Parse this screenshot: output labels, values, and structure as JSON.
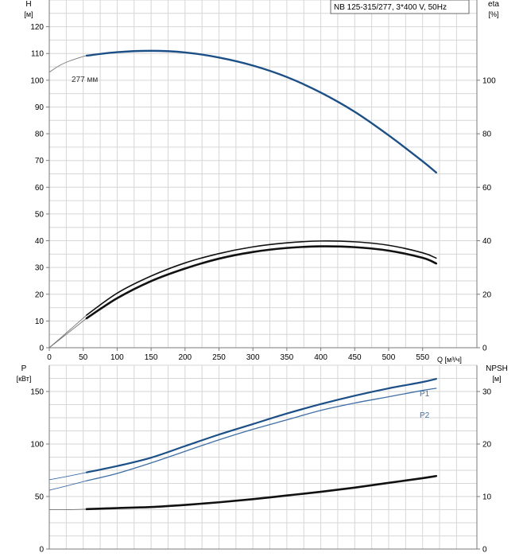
{
  "colors": {
    "blue": "#1b4f86",
    "blue_light": "#3f6fa5",
    "grid": "#d6d6d6",
    "axis": "#7a7a7a",
    "curve_dark": "#111111",
    "curve_thin": "#777777"
  },
  "chart_data": [
    {
      "type": "line",
      "title": "NB 125-315/277, 3*400 V, 50Hz",
      "ylabel_left": "H",
      "ylabel_left_unit": "[м]",
      "ylabel_right": "eta",
      "ylabel_right_unit": "[%]",
      "xlabel": "Q [м³/ч]",
      "xlim": [
        0,
        630
      ],
      "ylim_left": [
        0,
        130
      ],
      "ylim_right": [
        0,
        130
      ],
      "x_ticks": [
        "0",
        "50",
        "100",
        "150",
        "200",
        "250",
        "300",
        "350",
        "400",
        "450",
        "500",
        "550"
      ],
      "y_ticks_left": [
        "0",
        "10",
        "20",
        "30",
        "40",
        "50",
        "60",
        "70",
        "80",
        "90",
        "100",
        "110",
        "120"
      ],
      "y_ticks_right": [
        "0",
        "20",
        "40",
        "60",
        "80",
        "100"
      ],
      "curve_label": "277 мм",
      "series": [
        {
          "role": "head-extension",
          "x": [
            0,
            15,
            30,
            45,
            55
          ],
          "y": [
            103,
            105.5,
            107.2,
            108.5,
            109.2
          ]
        },
        {
          "role": "head",
          "x": [
            55,
            100,
            150,
            200,
            250,
            300,
            350,
            400,
            450,
            500,
            550,
            570
          ],
          "y": [
            109.2,
            110.5,
            111,
            110.4,
            108.5,
            105.5,
            101.2,
            95.4,
            88.2,
            79.4,
            69.7,
            65.5
          ]
        },
        {
          "role": "eta-outer-extension",
          "x": [
            0,
            25,
            55
          ],
          "y": [
            0,
            5.5,
            12.2
          ]
        },
        {
          "role": "eta-outer",
          "x": [
            55,
            100,
            150,
            200,
            250,
            300,
            350,
            400,
            450,
            500,
            550,
            570
          ],
          "y": [
            12.2,
            20.4,
            26.8,
            31.7,
            35.2,
            37.7,
            39.2,
            39.9,
            39.6,
            38.3,
            35.5,
            33.5
          ]
        },
        {
          "role": "eta-extension",
          "x": [
            0,
            25,
            55
          ],
          "y": [
            0,
            5.0,
            11.0
          ]
        },
        {
          "role": "eta",
          "x": [
            55,
            100,
            150,
            200,
            250,
            300,
            350,
            400,
            450,
            500,
            550,
            570
          ],
          "y": [
            11.0,
            18.5,
            24.9,
            29.6,
            33.3,
            35.8,
            37.3,
            37.9,
            37.6,
            36.3,
            33.6,
            31.5
          ]
        }
      ]
    },
    {
      "type": "line",
      "ylabel_left": "P",
      "ylabel_left_unit": "[кВт]",
      "ylabel_right": "NPSH",
      "ylabel_right_unit": "[м]",
      "xlim": [
        0,
        630
      ],
      "ylim_left": [
        0,
        175
      ],
      "ylim_right": [
        0,
        35
      ],
      "y_ticks_left": [
        "0",
        "50",
        "100",
        "150"
      ],
      "y_ticks_right": [
        "0",
        "10",
        "20",
        "30"
      ],
      "series": [
        {
          "role": "p1-extension",
          "x": [
            0,
            25,
            55
          ],
          "y": [
            66,
            69,
            73
          ]
        },
        {
          "name": "P1",
          "x": [
            55,
            100,
            150,
            200,
            250,
            300,
            350,
            400,
            450,
            500,
            550,
            570
          ],
          "y": [
            73,
            79,
            87,
            98,
            109,
            119,
            129,
            138,
            146,
            153,
            159,
            162
          ]
        },
        {
          "role": "p2-extension",
          "x": [
            0,
            25,
            55
          ],
          "y": [
            56,
            60,
            65
          ]
        },
        {
          "name": "P2",
          "x": [
            55,
            100,
            150,
            200,
            250,
            300,
            350,
            400,
            450,
            500,
            550,
            570
          ],
          "y": [
            65,
            72,
            82,
            93,
            104,
            114,
            123,
            132,
            139,
            145,
            151,
            153
          ]
        },
        {
          "role": "npsh-extension",
          "x": [
            0,
            30,
            55
          ],
          "y": [
            7.5,
            7.5,
            7.6
          ]
        },
        {
          "role": "npsh",
          "x": [
            55,
            100,
            150,
            200,
            250,
            300,
            350,
            400,
            450,
            500,
            550,
            570
          ],
          "y": [
            7.6,
            7.8,
            8.0,
            8.4,
            8.9,
            9.5,
            10.2,
            10.9,
            11.7,
            12.6,
            13.5,
            13.9
          ]
        }
      ]
    }
  ]
}
